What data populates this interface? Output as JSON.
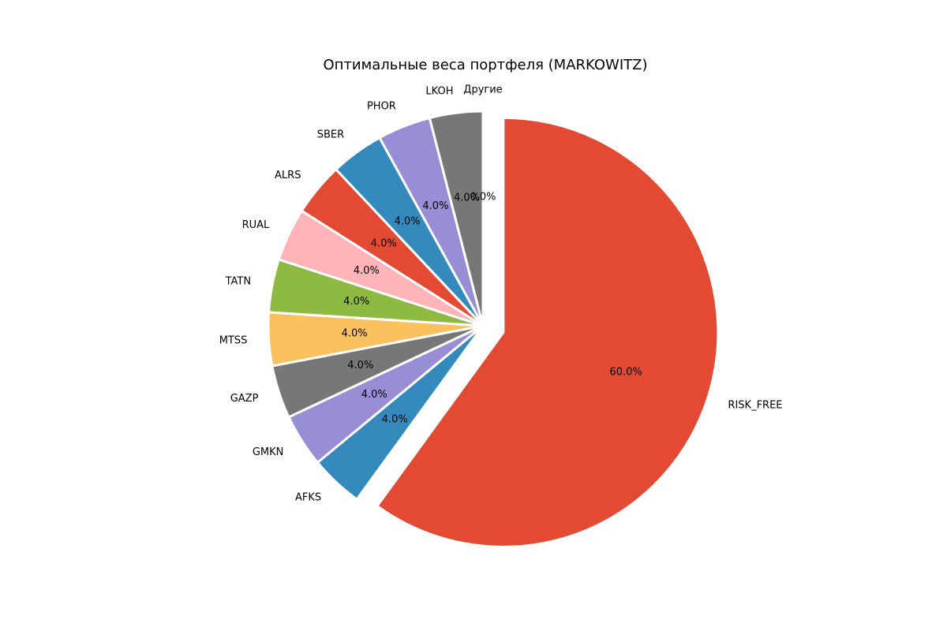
{
  "chart_data": {
    "type": "pie",
    "title": "Оптимальные веса портфеля (MARKOWITZ)",
    "start_angle_deg": 90,
    "direction": "clockwise",
    "explode": 0.1,
    "slices": [
      {
        "label": "RISK_FREE",
        "value": 60.0,
        "pct_label": "60.0%",
        "color": "#E24A33"
      },
      {
        "label": "AFKS",
        "value": 4.0,
        "pct_label": "4.0%",
        "color": "#348ABD"
      },
      {
        "label": "GMKN",
        "value": 4.0,
        "pct_label": "4.0%",
        "color": "#988ED5"
      },
      {
        "label": "GAZP",
        "value": 4.0,
        "pct_label": "4.0%",
        "color": "#777777"
      },
      {
        "label": "MTSS",
        "value": 4.0,
        "pct_label": "4.0%",
        "color": "#FBC15E"
      },
      {
        "label": "TATN",
        "value": 4.0,
        "pct_label": "4.0%",
        "color": "#8EBA42"
      },
      {
        "label": "RUAL",
        "value": 4.0,
        "pct_label": "4.0%",
        "color": "#FFB5B8"
      },
      {
        "label": "ALRS",
        "value": 4.0,
        "pct_label": "4.0%",
        "color": "#E24A33"
      },
      {
        "label": "SBER",
        "value": 4.0,
        "pct_label": "4.0%",
        "color": "#348ABD"
      },
      {
        "label": "PHOR",
        "value": 4.0,
        "pct_label": "4.0%",
        "color": "#988ED5"
      },
      {
        "label": "LKOH",
        "value": 4.0,
        "pct_label": "4.0%",
        "color": "#777777"
      },
      {
        "label": "Другие",
        "value": 0.0,
        "pct_label": "0.0%",
        "color": "#FBC15E"
      }
    ]
  }
}
